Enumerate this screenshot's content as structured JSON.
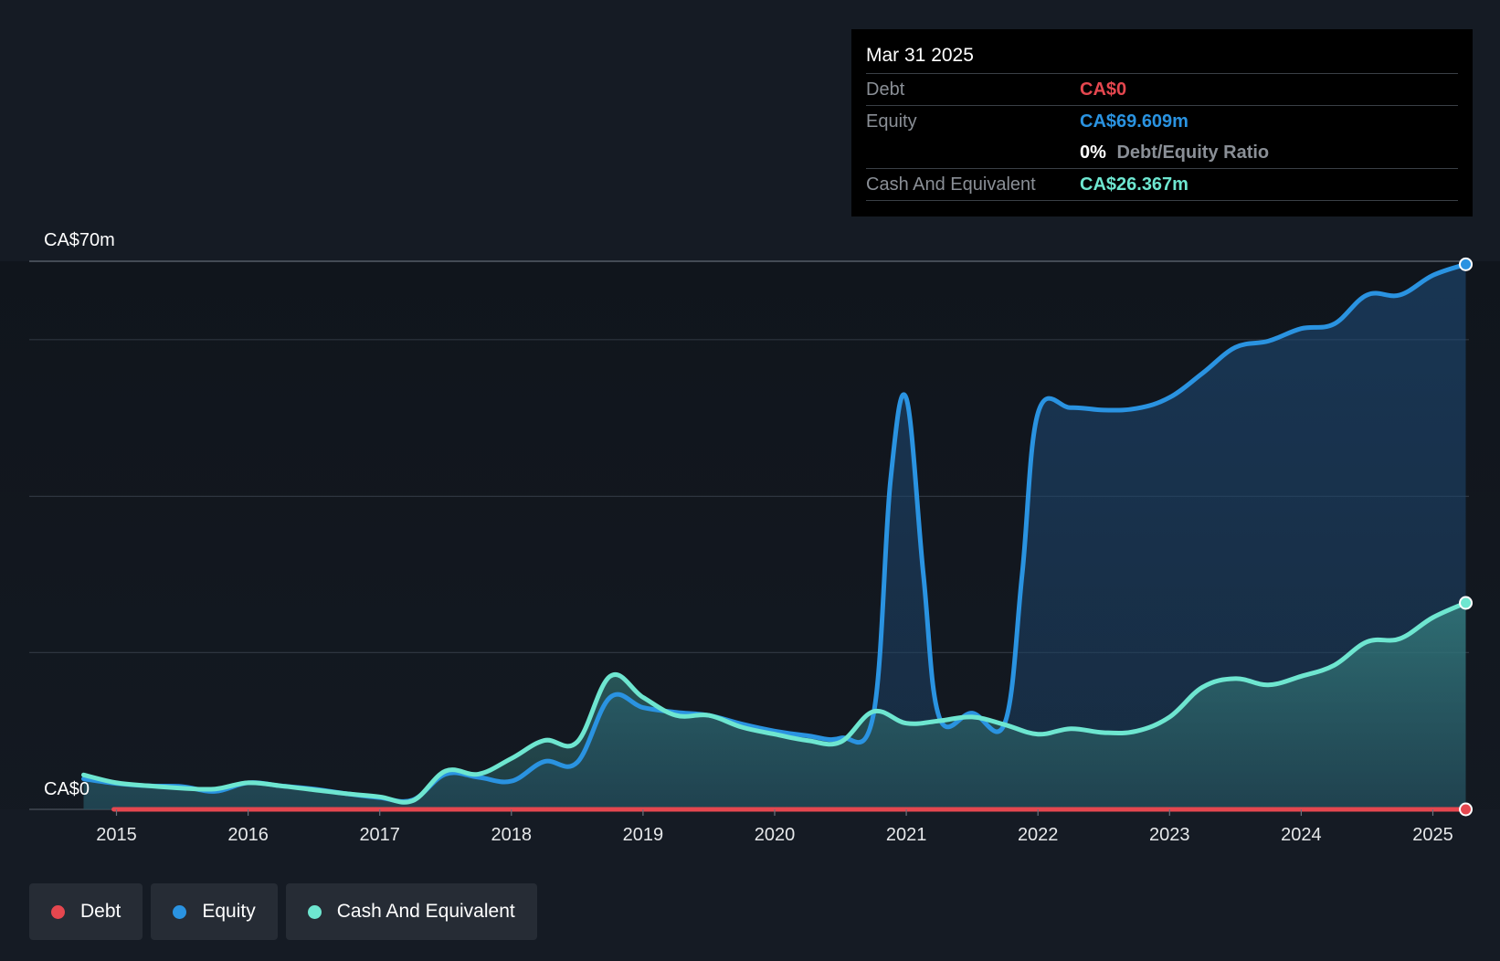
{
  "colors": {
    "debt": "#e5474f",
    "equity": "#2a93e1",
    "cash": "#6ee6d0",
    "background": "#151b24",
    "grid": "#2e353f"
  },
  "tooltip": {
    "date": "Mar 31 2025",
    "debt_label": "Debt",
    "debt_value": "CA$0",
    "equity_label": "Equity",
    "equity_value": "CA$69.609m",
    "ratio_value": "0%",
    "ratio_label": "Debt/Equity Ratio",
    "cash_label": "Cash And Equivalent",
    "cash_value": "CA$26.367m"
  },
  "legend": {
    "debt": "Debt",
    "equity": "Equity",
    "cash": "Cash And Equivalent"
  },
  "chart_data": {
    "type": "area",
    "title": "",
    "xlabel": "",
    "ylabel": "",
    "y_top_label": "CA$70m",
    "y_bottom_label": "CA$0",
    "ylim": [
      0,
      70
    ],
    "xlim": [
      2014.6,
      2025.25
    ],
    "x_ticks": [
      "2015",
      "2016",
      "2017",
      "2018",
      "2019",
      "2020",
      "2021",
      "2022",
      "2023",
      "2024",
      "2025"
    ],
    "grid": true,
    "legend_position": "bottom-left",
    "series": [
      {
        "name": "Debt",
        "key": "debt",
        "points": [
          [
            2014.98,
            0
          ],
          [
            2025.25,
            0
          ]
        ]
      },
      {
        "name": "Equity",
        "key": "equity",
        "points": [
          [
            2014.75,
            3.9
          ],
          [
            2015.0,
            3.3
          ],
          [
            2015.25,
            3.0
          ],
          [
            2015.5,
            2.9
          ],
          [
            2015.75,
            2.3
          ],
          [
            2016.0,
            3.4
          ],
          [
            2016.25,
            3.0
          ],
          [
            2016.5,
            2.6
          ],
          [
            2016.75,
            2.0
          ],
          [
            2017.0,
            1.5
          ],
          [
            2017.25,
            1.2
          ],
          [
            2017.5,
            4.5
          ],
          [
            2017.75,
            4.1
          ],
          [
            2018.0,
            3.6
          ],
          [
            2018.25,
            6.1
          ],
          [
            2018.5,
            6.0
          ],
          [
            2018.75,
            14.3
          ],
          [
            2019.0,
            13.0
          ],
          [
            2019.25,
            12.4
          ],
          [
            2019.5,
            12.0
          ],
          [
            2019.75,
            10.9
          ],
          [
            2020.0,
            10.0
          ],
          [
            2020.25,
            9.4
          ],
          [
            2020.5,
            9.1
          ],
          [
            2020.75,
            12.1
          ],
          [
            2020.88,
            42.0
          ],
          [
            2021.0,
            52.5
          ],
          [
            2021.13,
            30.0
          ],
          [
            2021.25,
            11.8
          ],
          [
            2021.5,
            12.3
          ],
          [
            2021.75,
            11.1
          ],
          [
            2021.88,
            30.0
          ],
          [
            2022.0,
            50.6
          ],
          [
            2022.25,
            51.3
          ],
          [
            2022.5,
            51.0
          ],
          [
            2022.75,
            51.2
          ],
          [
            2023.0,
            52.6
          ],
          [
            2023.25,
            55.7
          ],
          [
            2023.5,
            59.0
          ],
          [
            2023.75,
            59.8
          ],
          [
            2024.0,
            61.4
          ],
          [
            2024.25,
            62.0
          ],
          [
            2024.5,
            65.7
          ],
          [
            2024.75,
            65.7
          ],
          [
            2025.0,
            68.2
          ],
          [
            2025.25,
            69.609
          ]
        ]
      },
      {
        "name": "Cash And Equivalent",
        "key": "cash",
        "points": [
          [
            2014.75,
            4.4
          ],
          [
            2015.0,
            3.4
          ],
          [
            2015.25,
            3.0
          ],
          [
            2015.5,
            2.7
          ],
          [
            2015.75,
            2.6
          ],
          [
            2016.0,
            3.4
          ],
          [
            2016.25,
            3.0
          ],
          [
            2016.5,
            2.5
          ],
          [
            2016.75,
            2.0
          ],
          [
            2017.0,
            1.6
          ],
          [
            2017.25,
            1.1
          ],
          [
            2017.5,
            4.9
          ],
          [
            2017.75,
            4.5
          ],
          [
            2018.0,
            6.5
          ],
          [
            2018.25,
            8.8
          ],
          [
            2018.5,
            8.6
          ],
          [
            2018.75,
            17.0
          ],
          [
            2019.0,
            14.3
          ],
          [
            2019.25,
            12.0
          ],
          [
            2019.5,
            12.0
          ],
          [
            2019.75,
            10.5
          ],
          [
            2020.0,
            9.6
          ],
          [
            2020.25,
            8.8
          ],
          [
            2020.5,
            8.6
          ],
          [
            2020.75,
            12.5
          ],
          [
            2021.0,
            11.0
          ],
          [
            2021.25,
            11.3
          ],
          [
            2021.5,
            11.8
          ],
          [
            2021.75,
            10.8
          ],
          [
            2022.0,
            9.6
          ],
          [
            2022.25,
            10.3
          ],
          [
            2022.5,
            9.8
          ],
          [
            2022.75,
            10.0
          ],
          [
            2023.0,
            11.8
          ],
          [
            2023.25,
            15.6
          ],
          [
            2023.5,
            16.7
          ],
          [
            2023.75,
            15.9
          ],
          [
            2024.0,
            17.0
          ],
          [
            2024.25,
            18.4
          ],
          [
            2024.5,
            21.4
          ],
          [
            2024.75,
            21.8
          ],
          [
            2025.0,
            24.5
          ],
          [
            2025.25,
            26.367
          ]
        ]
      }
    ]
  }
}
